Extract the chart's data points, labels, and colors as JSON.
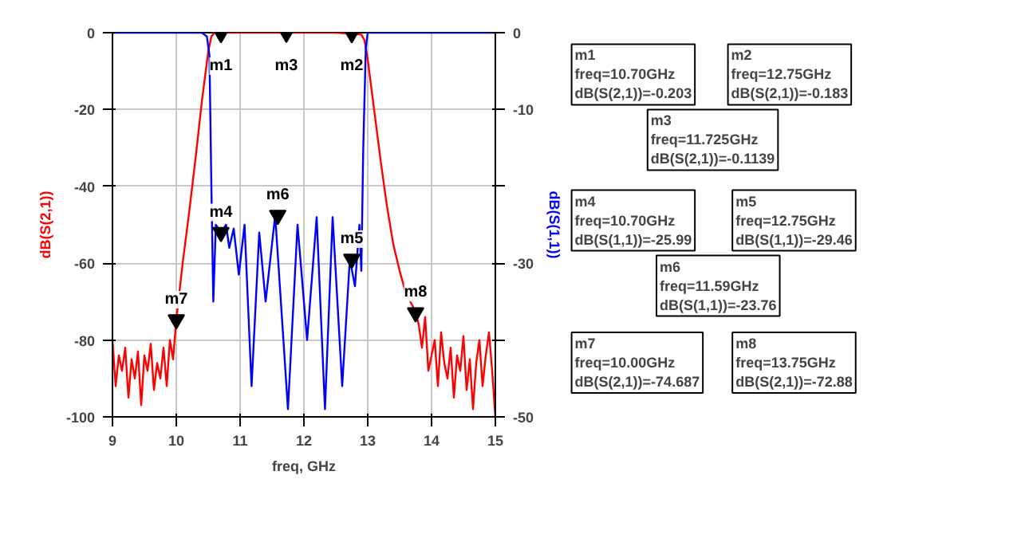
{
  "chart_data": {
    "type": "line",
    "xlabel": "freq, GHz",
    "ylabel": "dB(S(2,1))",
    "y2label": "dB(S(1,1))",
    "xlim": [
      9,
      15
    ],
    "xticks": [
      9,
      10,
      11,
      12,
      13,
      14,
      15
    ],
    "ylim": [
      -100,
      0
    ],
    "yticks": [
      -100,
      -80,
      -60,
      -40,
      -20,
      0
    ],
    "y2lim": [
      -50,
      0
    ],
    "y2ticks": [
      -50,
      {
        "value": -40,
        "label": null
      },
      -30,
      {
        "value": -20,
        "label": null
      },
      -10,
      0
    ],
    "grid": true,
    "line_style": "solid",
    "series": [
      {
        "color": "#ff0000",
        "axis": "y",
        "x": [
          9.0,
          9.05,
          9.1,
          9.15,
          9.2,
          9.25,
          9.3,
          9.35,
          9.4,
          9.45,
          9.5,
          9.55,
          9.6,
          9.65,
          9.7,
          9.75,
          9.8,
          9.85,
          9.9,
          9.95,
          10.0,
          10.1,
          10.2,
          10.3,
          10.4,
          10.5,
          10.55,
          10.6,
          11.0,
          11.5,
          12.0,
          12.5,
          12.9,
          12.95,
          13.0,
          13.1,
          13.2,
          13.3,
          13.4,
          13.5,
          13.6,
          13.7,
          13.75,
          13.8,
          13.85,
          13.9,
          13.95,
          14.0,
          14.05,
          14.1,
          14.15,
          14.2,
          14.25,
          14.3,
          14.35,
          14.4,
          14.45,
          14.5,
          14.55,
          14.6,
          14.65,
          14.7,
          14.75,
          14.8,
          14.85,
          14.9,
          14.95,
          15.0
        ],
        "values": [
          -80,
          -92,
          -84,
          -88,
          -82,
          -95,
          -85,
          -90,
          -83,
          -97,
          -84,
          -88,
          -81,
          -93,
          -86,
          -90,
          -82,
          -92,
          -80,
          -85,
          -74.687,
          -60,
          -47,
          -33,
          -18,
          -5,
          -1,
          0,
          0,
          0,
          0,
          0,
          -0.5,
          -2,
          -7,
          -20,
          -33,
          -45,
          -55,
          -62,
          -68,
          -71,
          -72.88,
          -76,
          -82,
          -74,
          -88,
          -84,
          -80,
          -92,
          -78,
          -86,
          -90,
          -82,
          -95,
          -84,
          -88,
          -79,
          -93,
          -85,
          -98,
          -86,
          -80,
          -92,
          -84,
          -78,
          -88,
          -100
        ]
      },
      {
        "color": "#0000ff",
        "axis": "y2",
        "x": [
          9.0,
          10.4,
          10.48,
          10.52,
          10.55,
          10.58,
          10.62,
          10.7,
          10.78,
          10.83,
          10.9,
          10.98,
          11.07,
          11.18,
          11.3,
          11.4,
          11.55,
          11.75,
          11.9,
          12.05,
          12.2,
          12.33,
          12.45,
          12.6,
          12.72,
          12.8,
          12.87,
          12.9,
          12.93,
          12.97,
          13.0,
          15.0
        ],
        "values": [
          0,
          0,
          -0.5,
          -3,
          -20,
          -35,
          -25,
          -25.99,
          -25,
          -28,
          -25.5,
          -31.5,
          -25,
          -46,
          -26,
          -35,
          -23.76,
          -49,
          -25,
          -40,
          -24,
          -49,
          -24,
          -46,
          -29.46,
          -33,
          -25,
          -31,
          -15,
          -2,
          0,
          0
        ]
      },
      {
        "type": "scatter",
        "marker": "triangle",
        "color": "#000000",
        "axis": "y",
        "x": [
          10.7,
          12.75,
          11.725,
          10.0,
          13.75
        ],
        "values": [
          -0.203,
          -0.183,
          -0.1139,
          -74.687,
          -72.88
        ],
        "value_labels": [
          "m1",
          "m2",
          "m3",
          "m7",
          "m8"
        ]
      },
      {
        "type": "scatter",
        "marker": "triangle",
        "color": "#000000",
        "axis": "y2",
        "x": [
          10.7,
          12.75,
          11.59
        ],
        "values": [
          -25.99,
          -29.46,
          -23.76
        ],
        "value_labels": [
          "m4",
          "m5",
          "m6"
        ]
      }
    ],
    "annotations": [
      "m1\nfreq=10.70GHz\ndB(S(2,1))=-0.203",
      "m2\nfreq=12.75GHz\ndB(S(2,1))=-0.183",
      "m3\nfreq=11.725GHz\ndB(S(2,1))=-0.1139",
      "m4\nfreq=10.70GHz\ndB(S(1,1))=-25.99",
      "m5\nfreq=12.75GHz\ndB(S(1,1))=-29.46",
      "m6\nfreq=11.59GHz\ndB(S(1,1))=-23.76",
      "m7\nfreq=10.00GHz\ndB(S(2,1))=-74.687",
      "m8\nfreq=13.75GHz\ndB(S(2,1))=-72.88"
    ]
  }
}
